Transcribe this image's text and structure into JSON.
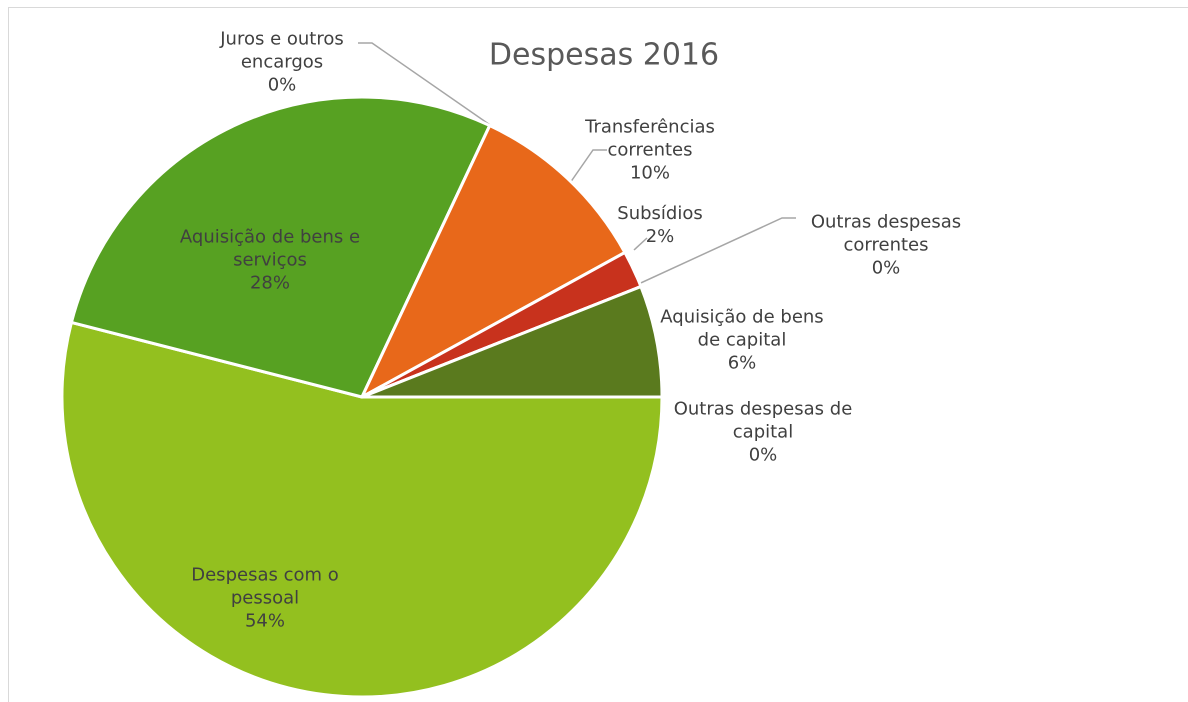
{
  "chart_data": {
    "type": "pie",
    "title": "Despesas 2016",
    "categories": [
      "Despesas com o pessoal",
      "Aquisição  de bens e serviços",
      "Juros e outros encargos",
      "Transferências correntes",
      "Subsídios",
      "Outras despesas correntes",
      "Aquisição de bens de capital",
      "Outras despesas de capital"
    ],
    "values": [
      54,
      28,
      0,
      10,
      2,
      0,
      6,
      0
    ],
    "value_labels": [
      "54%",
      "28%",
      "0%",
      "10%",
      "2%",
      "0%",
      "6%",
      "0%"
    ],
    "colors": [
      "#93c01f",
      "#57a122",
      "#3e6e1a",
      "#e8681a",
      "#c8321d",
      "#8a3a1a",
      "#5a7a1e",
      "#4a6a18"
    ]
  }
}
